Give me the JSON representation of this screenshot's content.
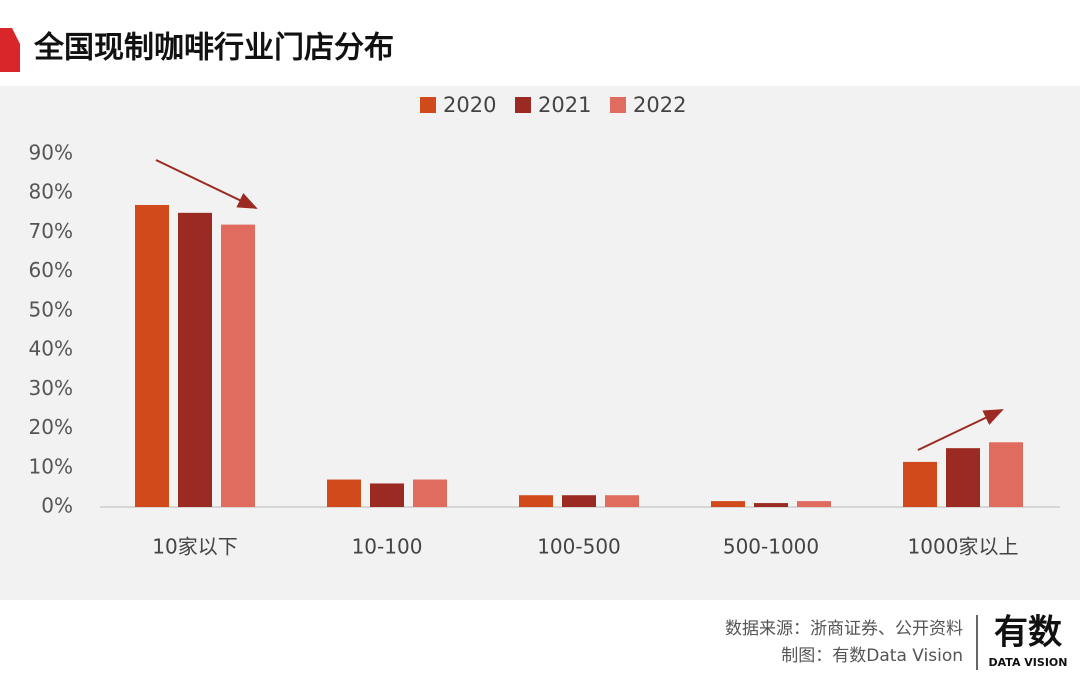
{
  "chart_data": {
    "type": "bar",
    "title": "全国现制咖啡行业门店分布",
    "categories": [
      "10家以下",
      "10-100",
      "100-500",
      "500-1000",
      "1000家以上"
    ],
    "series": [
      {
        "name": "2020",
        "color": "#d04a1c",
        "values": [
          77,
          7,
          3,
          1.5,
          11.5
        ]
      },
      {
        "name": "2021",
        "color": "#9b2a22",
        "values": [
          75,
          6,
          3,
          1,
          15
        ]
      },
      {
        "name": "2022",
        "color": "#e06b5f",
        "values": [
          72,
          7,
          3,
          1.5,
          16.5
        ]
      }
    ],
    "ylim": [
      0,
      90
    ],
    "yticks": [
      {
        "value": 0,
        "label": "0%"
      },
      {
        "value": 10,
        "label": "10%"
      },
      {
        "value": 20,
        "label": "20%"
      },
      {
        "value": 30,
        "label": "30%"
      },
      {
        "value": 40,
        "label": "40%"
      },
      {
        "value": 50,
        "label": "50%"
      },
      {
        "value": 60,
        "label": "60%"
      },
      {
        "value": 70,
        "label": "70%"
      },
      {
        "value": 80,
        "label": "80%"
      },
      {
        "value": 90,
        "label": "90%"
      }
    ],
    "grid": false
  },
  "footer": {
    "source": "数据来源：浙商证券、公开资料",
    "credit": "制图：有数Data Vision",
    "logo": "有数",
    "logo_sub": "DATA VISION"
  }
}
